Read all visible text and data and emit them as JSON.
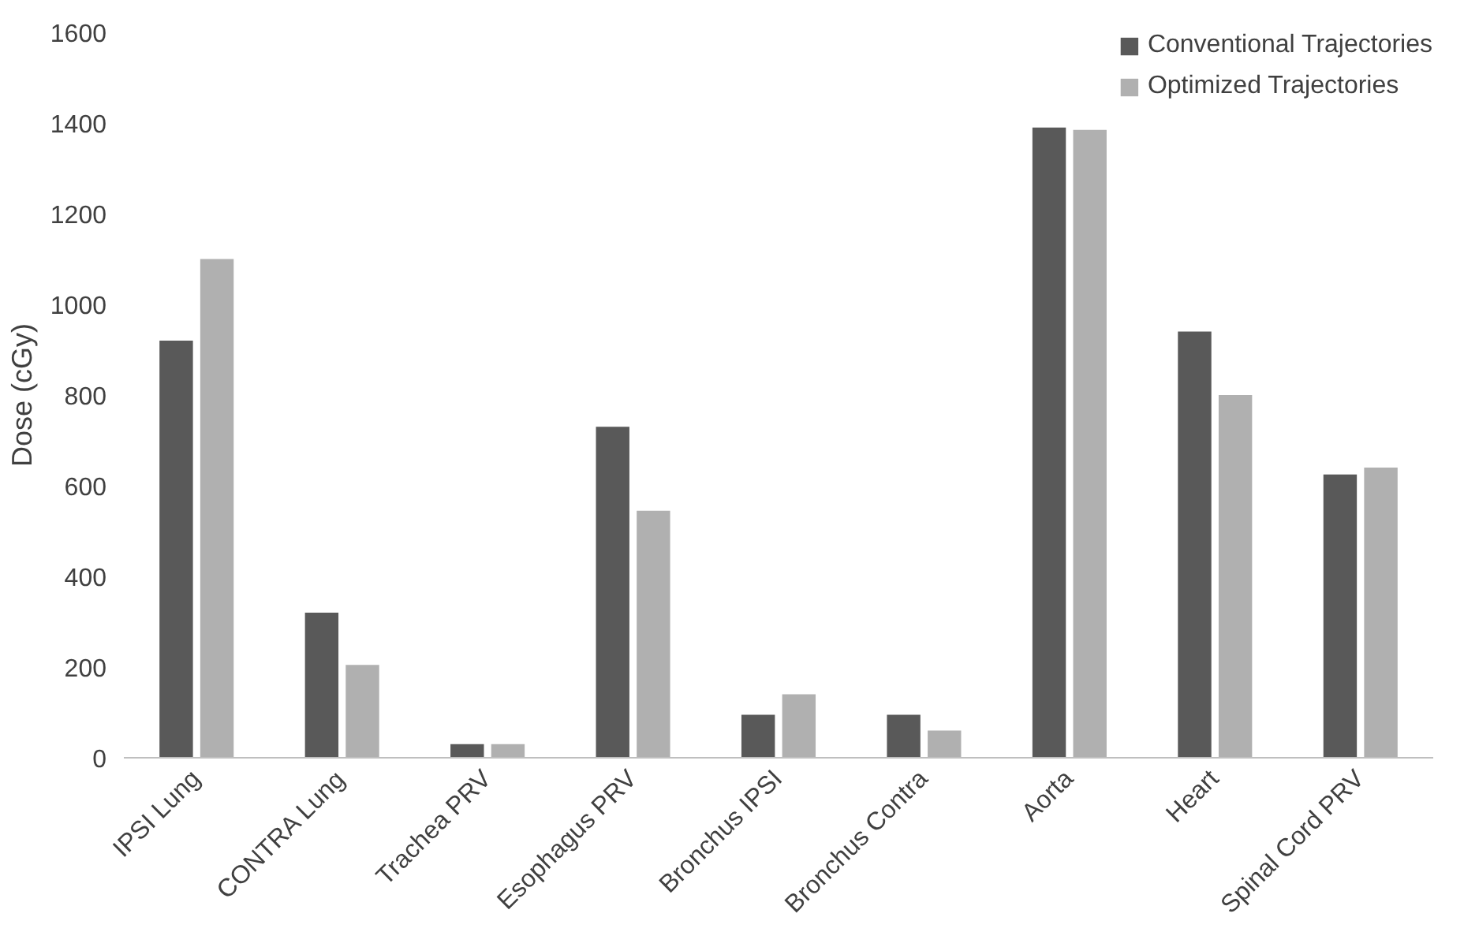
{
  "chart_data": {
    "type": "bar",
    "ylabel": "Dose (cGy)",
    "categories": [
      "IPSI Lung",
      "CONTRA Lung",
      "Trachea PRV",
      "Esophagus PRV",
      "Bronchus IPSI",
      "Bronchus Contra",
      "Aorta",
      "Heart",
      "Spinal Cord PRV"
    ],
    "series": [
      {
        "name": "Conventional Trajectories",
        "color": "#595959",
        "values": [
          920,
          320,
          30,
          730,
          95,
          95,
          1390,
          940,
          625
        ]
      },
      {
        "name": "Optimized Trajectories",
        "color": "#b0b0b0",
        "values": [
          1100,
          205,
          30,
          545,
          140,
          60,
          1385,
          800,
          640
        ]
      }
    ],
    "ylim": [
      0,
      1600
    ],
    "yticks": [
      0,
      200,
      400,
      600,
      800,
      1000,
      1200,
      1400,
      1600
    ],
    "grid": false,
    "legend": "top right"
  }
}
